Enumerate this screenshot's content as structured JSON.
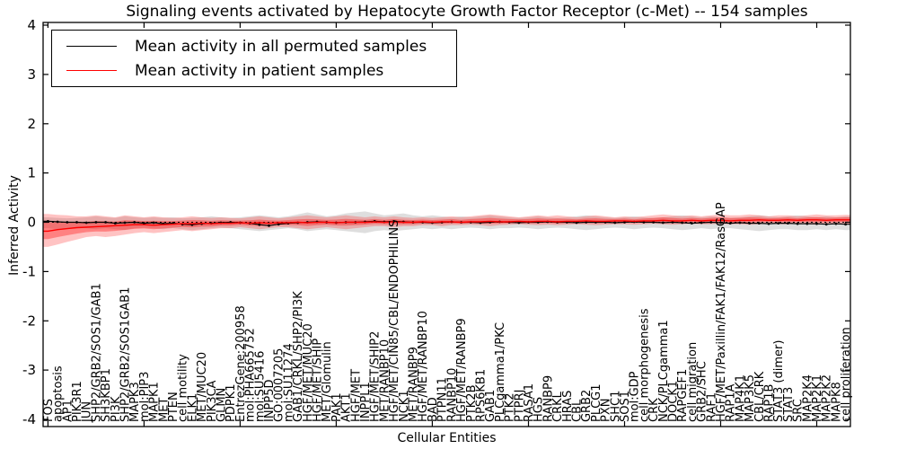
{
  "figure": {
    "title": "Signaling events activated by Hepatocyte Growth Factor Receptor (c-Met) -- 154 samples",
    "xlabel": "Cellular Entities",
    "ylabel": "Inferred Activity"
  },
  "legend": {
    "entries": [
      {
        "label": "Mean activity in all permuted samples",
        "color": "#000000"
      },
      {
        "label": "Mean activity in patient samples",
        "color": "#ff0000"
      }
    ]
  },
  "colors": {
    "frame": "#000000",
    "permuted_line": "#000000",
    "patient_line": "#ff0000",
    "permuted_band_fill": "rgba(0,0,0,0.13)",
    "patient_band_outer_fill": "rgba(255,40,40,0.28)",
    "patient_band_inner_fill": "rgba(255,20,20,0.38)"
  },
  "chart_data": {
    "type": "line",
    "title": "Signaling events activated by Hepatocyte Growth Factor Receptor (c-Met) -- 154 samples",
    "xlabel": "Cellular Entities",
    "ylabel": "Inferred Activity",
    "ylim": [
      -4.1,
      4.1
    ],
    "yticks": [
      "-4",
      "-3",
      "-2",
      "-1",
      "0",
      "1",
      "2",
      "3",
      "4"
    ],
    "ytick_values": [
      -4,
      -3,
      -2,
      -1,
      0,
      1,
      2,
      3,
      4
    ],
    "grid": false,
    "legend_position": "upper left",
    "categories": [
      "FOS",
      "apoptosis",
      "AP1",
      "PIK3R1",
      "JUN",
      "SHP2/GRB2/SOS1/GAB1",
      "SH3KBP1",
      "PI3K",
      "SHP2/GRB2/SOS1GAB1",
      "MAPK3",
      "mol:PIP3",
      "MAPK1",
      "MET",
      "PTEN",
      "cell motility",
      "ELK1",
      "MET/MUC20",
      "PIK3CA",
      "GLMN",
      "PDPK1",
      "EntrezGene:200958",
      "mol:PHA665752",
      "mol:SU5416",
      "INPP5D",
      "GO:0007205",
      "mol:SU11274",
      "GAB1/CRKL/SHP2/PI3K",
      "HGF/MET/MUC20",
      "HGF/MET/SHIP",
      "MET/Glomulin",
      "PAK1",
      "AKT1",
      "HGF/MET",
      "INPPL1",
      "HGF/MET/SHIP2",
      "MET/RANBP10",
      "HGF/MET/CIN85/CBL/ENDOPHILINS",
      "NCK1",
      "MET/RANBP9",
      "HGF/MET/RANBP10",
      "BAD",
      "PTPN11",
      "RANBP10",
      "HGF/MET/RANBP9",
      "PTK2B",
      "RPS6KB1",
      "GAB1",
      "PLCgamma1/PKC",
      "PTK2",
      "PTPRJ",
      "RASA1",
      "HGS",
      "RANBP9",
      "CRKL",
      "HRAS",
      "CBL",
      "GRB2",
      "PLCG1",
      "PXN",
      "SHC1",
      "SOS1",
      "mol:GDP",
      "cell morphogenesis",
      "CRK",
      "NCK/PLCgamma1",
      "DOCK1",
      "RAPGEF1",
      "cell migration",
      "GRB2/SHC",
      "RAF1",
      "HGF/MET/Paxillin/FAK1/FAK12/RasGAP",
      "RAP1A",
      "MAP4K1",
      "MAP3K5",
      "CBL/CRK",
      "RAP1B",
      "STAT3 (dimer)",
      "STAT3",
      "SRC",
      "MAP2K4",
      "MAP2K1",
      "MAP2K2",
      "MAPK8",
      "cell proliferation"
    ],
    "series": [
      {
        "name": "Mean activity in all permuted samples",
        "color": "#000000",
        "values": [
          0.02,
          0.01,
          0.0,
          0.0,
          -0.01,
          0.0,
          0.0,
          -0.02,
          -0.01,
          0.0,
          -0.02,
          -0.01,
          -0.03,
          -0.02,
          -0.04,
          -0.05,
          -0.03,
          -0.02,
          -0.01,
          0.0,
          -0.01,
          -0.02,
          -0.05,
          -0.07,
          -0.04,
          -0.02,
          -0.01,
          0.0,
          0.01,
          0.0,
          -0.01,
          0.0,
          0.0,
          0.01,
          0.02,
          0.01,
          0.02,
          0.01,
          0.0,
          0.0,
          -0.01,
          0.0,
          0.01,
          0.0,
          0.0,
          -0.01,
          0.0,
          0.01,
          0.0,
          -0.01,
          0.0,
          0.0,
          0.01,
          0.0,
          0.0,
          -0.01,
          0.0,
          0.0,
          0.0,
          -0.01,
          0.0,
          0.01,
          0.0,
          0.0,
          -0.01,
          0.0,
          -0.01,
          -0.02,
          -0.01,
          0.0,
          -0.01,
          -0.02,
          -0.01,
          -0.02,
          -0.02,
          -0.03,
          -0.02,
          -0.02,
          -0.03,
          -0.03,
          -0.03,
          -0.04,
          -0.03,
          -0.04
        ]
      },
      {
        "name": "Mean activity in patient samples",
        "color": "#ff0000",
        "values": [
          -0.18,
          -0.15,
          -0.13,
          -0.11,
          -0.1,
          -0.09,
          -0.08,
          -0.07,
          -0.06,
          -0.05,
          -0.05,
          -0.06,
          -0.05,
          -0.04,
          -0.03,
          -0.03,
          -0.02,
          -0.03,
          -0.02,
          -0.02,
          -0.01,
          -0.02,
          -0.01,
          -0.02,
          -0.01,
          -0.01,
          0.0,
          -0.01,
          0.0,
          0.0,
          -0.01,
          0.0,
          0.0,
          0.0,
          0.01,
          0.0,
          0.01,
          0.0,
          0.0,
          0.01,
          0.0,
          0.01,
          0.01,
          0.0,
          0.01,
          0.01,
          0.02,
          0.01,
          0.01,
          0.02,
          0.01,
          0.02,
          0.02,
          0.01,
          0.02,
          0.02,
          0.03,
          0.02,
          0.02,
          0.03,
          0.03,
          0.02,
          0.03,
          0.03,
          0.04,
          0.03,
          0.03,
          0.04,
          0.03,
          0.04,
          0.04,
          0.03,
          0.04,
          0.04,
          0.05,
          0.04,
          0.04,
          0.05,
          0.04,
          0.05,
          0.05,
          0.04,
          0.05,
          0.05
        ]
      }
    ],
    "bands": {
      "permuted_upper": [
        0.1,
        0.09,
        0.08,
        0.09,
        0.1,
        0.12,
        0.1,
        0.09,
        0.12,
        0.1,
        0.09,
        0.1,
        0.09,
        0.1,
        0.08,
        0.09,
        0.1,
        0.12,
        0.1,
        0.09,
        0.1,
        0.12,
        0.14,
        0.12,
        0.1,
        0.12,
        0.16,
        0.2,
        0.16,
        0.12,
        0.14,
        0.18,
        0.2,
        0.22,
        0.18,
        0.14,
        0.16,
        0.18,
        0.14,
        0.12,
        0.14,
        0.12,
        0.1,
        0.12,
        0.1,
        0.12,
        0.14,
        0.12,
        0.1,
        0.09,
        0.1,
        0.12,
        0.1,
        0.09,
        0.1,
        0.12,
        0.14,
        0.12,
        0.1,
        0.09,
        0.1,
        0.12,
        0.1,
        0.09,
        0.1,
        0.12,
        0.14,
        0.12,
        0.1,
        0.12,
        0.1,
        0.09,
        0.1,
        0.12,
        0.14,
        0.12,
        0.1,
        0.12,
        0.14,
        0.12,
        0.1,
        0.12,
        0.1,
        0.12
      ],
      "permuted_lower": [
        -0.12,
        -0.14,
        -0.12,
        -0.11,
        -0.12,
        -0.14,
        -0.12,
        -0.14,
        -0.16,
        -0.12,
        -0.11,
        -0.12,
        -0.14,
        -0.12,
        -0.14,
        -0.16,
        -0.14,
        -0.12,
        -0.11,
        -0.12,
        -0.14,
        -0.16,
        -0.18,
        -0.16,
        -0.14,
        -0.12,
        -0.14,
        -0.18,
        -0.16,
        -0.14,
        -0.16,
        -0.18,
        -0.2,
        -0.22,
        -0.18,
        -0.16,
        -0.18,
        -0.16,
        -0.14,
        -0.12,
        -0.14,
        -0.12,
        -0.14,
        -0.12,
        -0.11,
        -0.12,
        -0.14,
        -0.12,
        -0.12,
        -0.11,
        -0.12,
        -0.14,
        -0.12,
        -0.11,
        -0.12,
        -0.14,
        -0.16,
        -0.14,
        -0.12,
        -0.11,
        -0.12,
        -0.14,
        -0.12,
        -0.11,
        -0.12,
        -0.14,
        -0.16,
        -0.14,
        -0.12,
        -0.14,
        -0.12,
        -0.12,
        -0.14,
        -0.16,
        -0.18,
        -0.16,
        -0.14,
        -0.14,
        -0.16,
        -0.16,
        -0.14,
        -0.16,
        -0.14,
        -0.16
      ],
      "patient_upper": [
        0.17,
        0.15,
        0.14,
        0.12,
        0.12,
        0.14,
        0.12,
        0.1,
        0.14,
        0.12,
        0.1,
        0.12,
        0.1,
        0.09,
        0.1,
        0.12,
        0.1,
        0.09,
        0.1,
        0.09,
        0.08,
        0.1,
        0.12,
        0.1,
        0.08,
        0.1,
        0.12,
        0.14,
        0.12,
        0.1,
        0.12,
        0.14,
        0.12,
        0.1,
        0.12,
        0.1,
        0.12,
        0.1,
        0.09,
        0.1,
        0.09,
        0.1,
        0.12,
        0.1,
        0.12,
        0.14,
        0.16,
        0.14,
        0.12,
        0.1,
        0.12,
        0.14,
        0.12,
        0.14,
        0.12,
        0.1,
        0.12,
        0.14,
        0.12,
        0.1,
        0.12,
        0.1,
        0.12,
        0.14,
        0.16,
        0.14,
        0.12,
        0.14,
        0.12,
        0.14,
        0.16,
        0.14,
        0.14,
        0.16,
        0.14,
        0.12,
        0.14,
        0.14,
        0.12,
        0.14,
        0.16,
        0.14,
        0.14,
        0.15
      ],
      "patient_lower": [
        -0.5,
        -0.45,
        -0.4,
        -0.35,
        -0.3,
        -0.28,
        -0.3,
        -0.28,
        -0.25,
        -0.22,
        -0.2,
        -0.22,
        -0.2,
        -0.18,
        -0.16,
        -0.18,
        -0.16,
        -0.14,
        -0.12,
        -0.12,
        -0.1,
        -0.12,
        -0.14,
        -0.12,
        -0.1,
        -0.1,
        -0.12,
        -0.14,
        -0.12,
        -0.1,
        -0.12,
        -0.14,
        -0.12,
        -0.1,
        -0.08,
        -0.08,
        -0.1,
        -0.08,
        -0.08,
        -0.06,
        -0.06,
        -0.08,
        -0.06,
        -0.06,
        -0.05,
        -0.06,
        -0.08,
        -0.06,
        -0.05,
        -0.04,
        -0.05,
        -0.06,
        -0.05,
        -0.06,
        -0.05,
        -0.04,
        -0.05,
        -0.06,
        -0.05,
        -0.04,
        -0.04,
        -0.05,
        -0.04,
        -0.03,
        -0.04,
        -0.05,
        -0.04,
        -0.03,
        -0.04,
        -0.04,
        -0.03,
        -0.04,
        -0.04,
        -0.05,
        -0.04,
        -0.03,
        -0.04,
        -0.04,
        -0.03,
        -0.04,
        -0.05,
        -0.04,
        -0.04,
        -0.04
      ]
    }
  }
}
